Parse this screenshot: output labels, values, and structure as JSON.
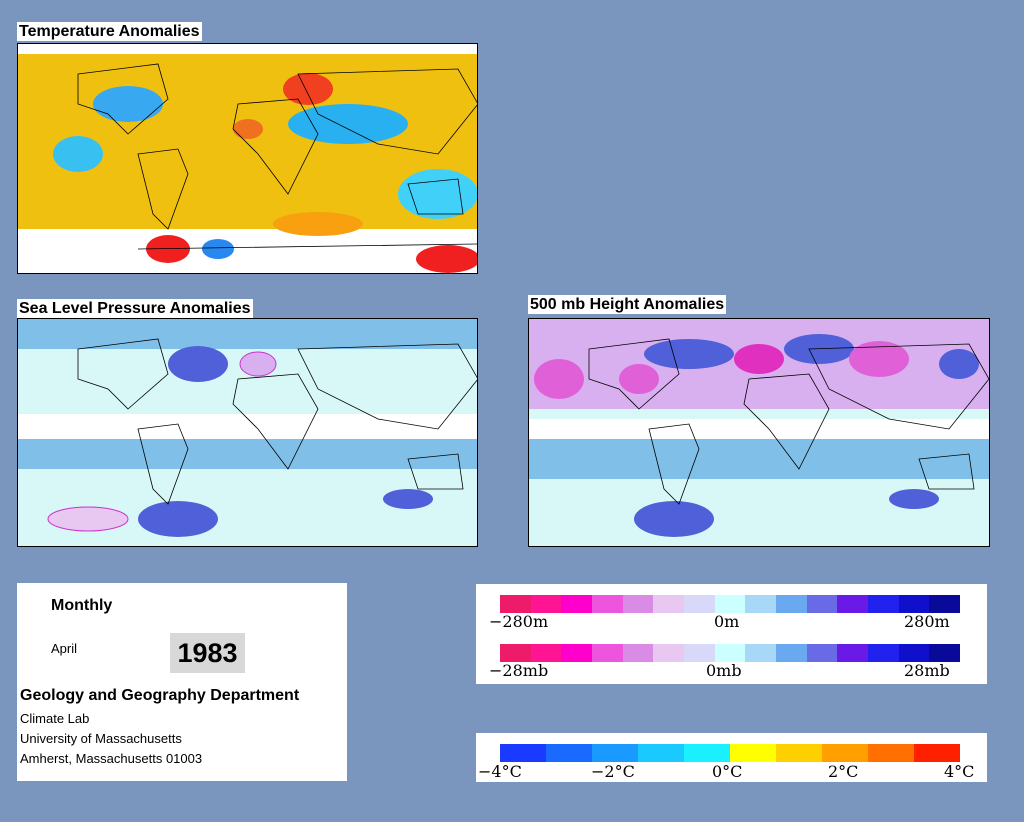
{
  "panels": {
    "temperature_title": "Temperature Anomalies",
    "slp_title": "Sea Level Pressure Anomalies",
    "height_title": "500 mb Height Anomalies"
  },
  "info": {
    "frequency": "Monthly",
    "month": "April",
    "year": "1983",
    "department": "Geology and Geography Department",
    "lines": [
      "Climate Lab",
      "University of Massachusetts",
      "Amherst, Massachusetts 01003"
    ]
  },
  "legend_height": {
    "colors": [
      "#ee1a6a",
      "#ff1493",
      "#ff00cc",
      "#ee55dd",
      "#d98be6",
      "#e8c8f0",
      "#d8d8f8",
      "#ccffff",
      "#a8d8f8",
      "#6aa8f0",
      "#6a6ae6",
      "#6a1ae6",
      "#2222ee",
      "#1010cc",
      "#0a0a9a"
    ],
    "left_label": "−280m",
    "mid_label": "0m",
    "right_label": "280m"
  },
  "legend_pressure": {
    "left_label": "−28mb",
    "mid_label": "0mb",
    "right_label": "28mb"
  },
  "legend_temperature": {
    "colors": [
      "#1a3aff",
      "#1a6aff",
      "#1a9aff",
      "#1acaff",
      "#1af0ff",
      "#ffff00",
      "#ffd000",
      "#ffa000",
      "#ff7000",
      "#ff2000"
    ],
    "labels": [
      "−4°C",
      "−2°C",
      "0°C",
      "2°C",
      "4°C"
    ]
  }
}
